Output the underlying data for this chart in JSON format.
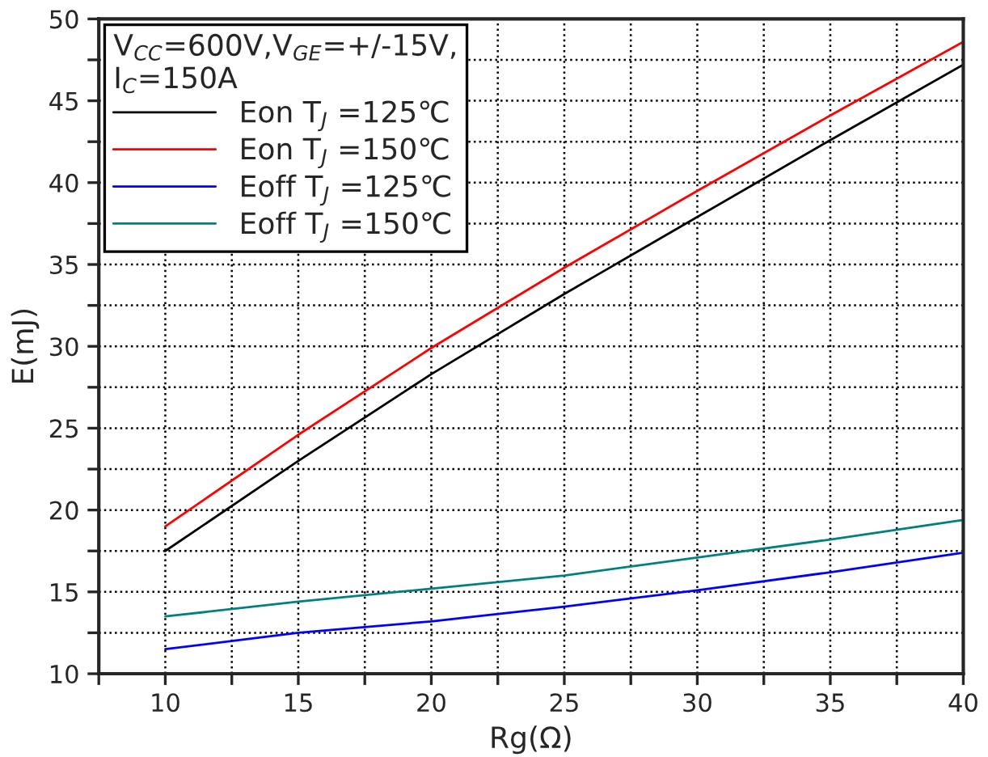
{
  "chart_data": {
    "type": "line",
    "xlabel": "Rg(Ω)",
    "ylabel": "E(mJ)",
    "legend_title": "V$_{CC}$=600V,V$_{GE}$=+/-15V,\nI$_{C}$=150A",
    "x": [
      10,
      15,
      20,
      25,
      30,
      35,
      40
    ],
    "series": [
      {
        "name": "Eon T$_{J}$ =125℃",
        "color": "#000000",
        "values": [
          17.5,
          23,
          28.3,
          33.2,
          37.9,
          42.6,
          47.2
        ]
      },
      {
        "name": "Eon T$_{J}$ =150℃",
        "color": "#ff0000",
        "values": [
          19,
          24.6,
          29.9,
          34.8,
          39.5,
          44.1,
          48.6
        ]
      },
      {
        "name": "Eoff T$_{J}$ =125℃",
        "color": "#0000ff",
        "values": [
          11.5,
          12.5,
          13.2,
          14.1,
          15.1,
          16.2,
          17.4
        ]
      },
      {
        "name": "Eoff T$_{J}$ =150℃",
        "color": "#008080",
        "values": [
          13.5,
          14.4,
          15.2,
          16.0,
          17.1,
          18.2,
          19.4
        ]
      }
    ],
    "xlim": [
      7.5,
      40
    ],
    "xticks": [
      {
        "value": 7.5,
        "label": null
      },
      10,
      {
        "value": 12.5,
        "label": null
      },
      15,
      {
        "value": 17.5,
        "label": null
      },
      20,
      {
        "value": 22.5,
        "label": null
      },
      25,
      {
        "value": 27.5,
        "label": null
      },
      30,
      {
        "value": 32.5,
        "label": null
      },
      35,
      {
        "value": 37.5,
        "label": null
      },
      40
    ],
    "ylim": [
      10,
      50
    ],
    "yticks": [
      10,
      {
        "value": 12.5,
        "label": null
      },
      15,
      {
        "value": 17.5,
        "label": null
      },
      20,
      {
        "value": 22.5,
        "label": null
      },
      25,
      {
        "value": 27.5,
        "label": null
      },
      30,
      {
        "value": 32.5,
        "label": null
      },
      35,
      {
        "value": 37.5,
        "label": null
      },
      40,
      {
        "value": 42.5,
        "label": null
      },
      45,
      {
        "value": 47.5,
        "label": null
      },
      50
    ],
    "grid": true,
    "legend": "top left",
    "marker": "none",
    "line_style": "solid"
  }
}
